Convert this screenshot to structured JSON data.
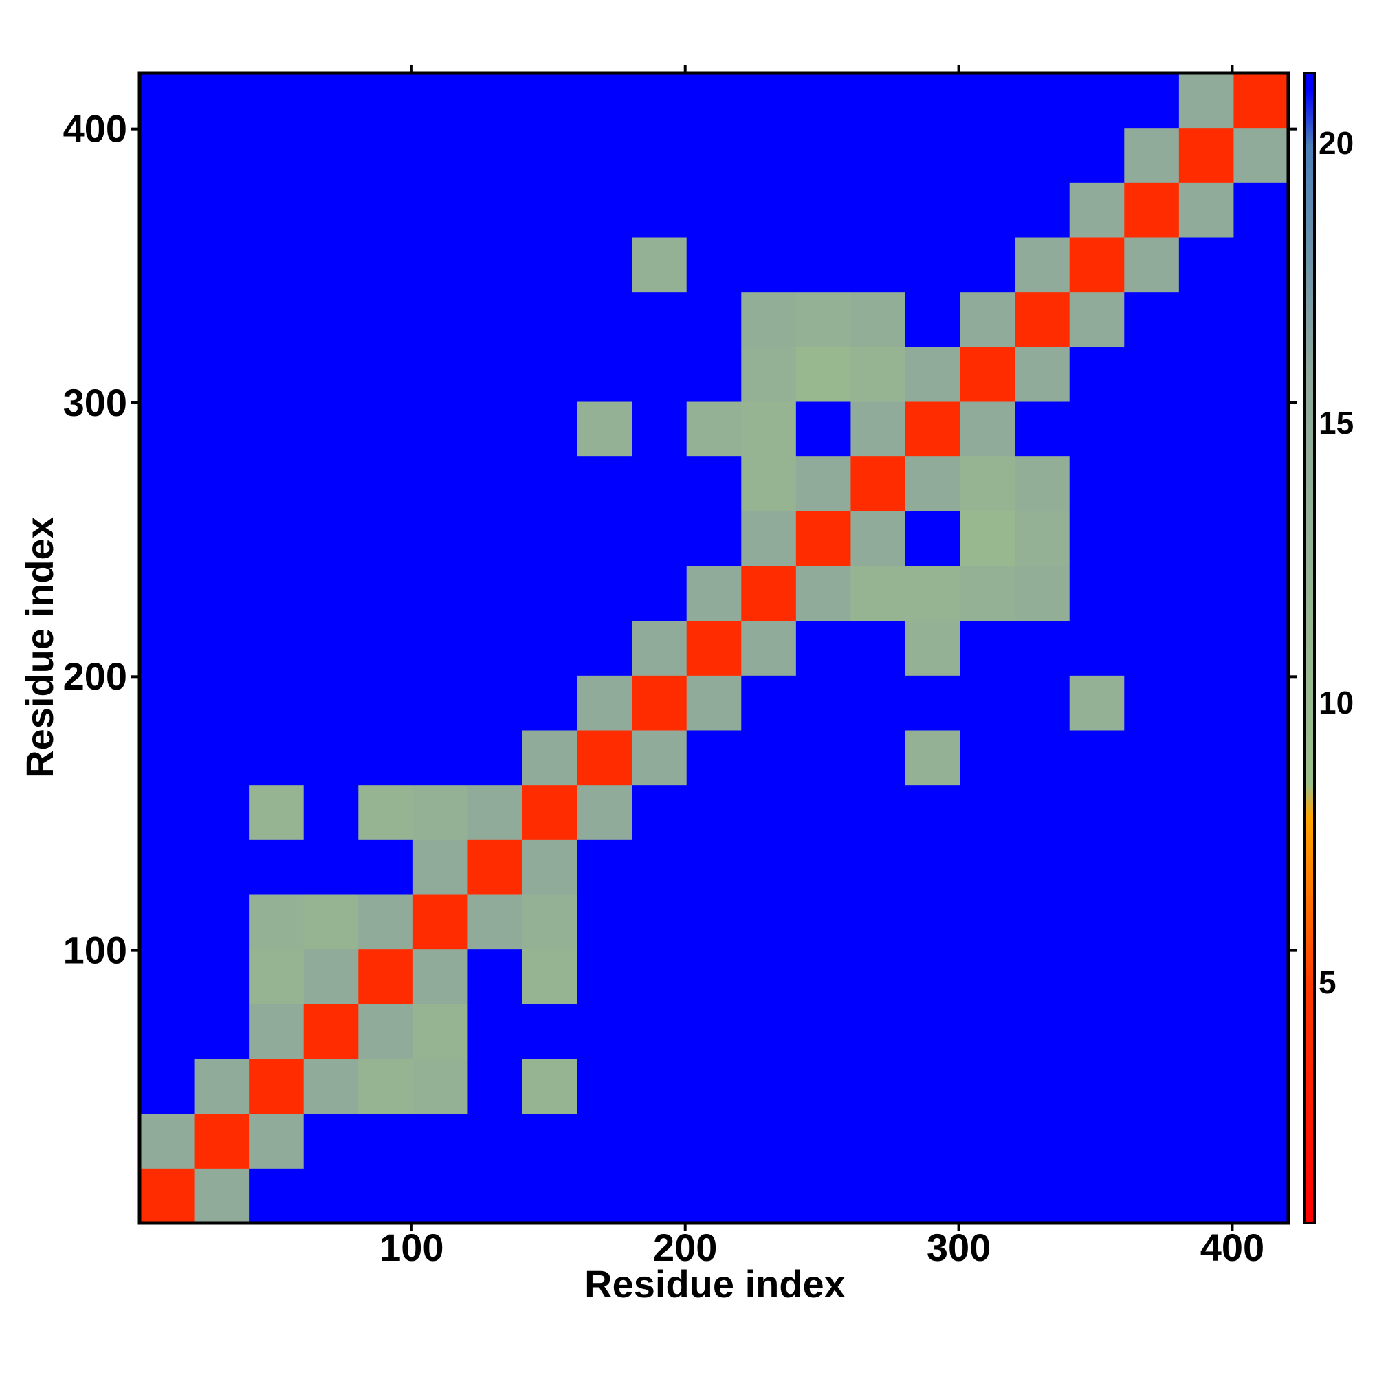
{
  "chart_data": {
    "type": "heatmap",
    "xlabel": "Residue index",
    "ylabel": "Residue index",
    "xbins": [
      0.5,
      20.5,
      40.5,
      60.5,
      80.5,
      100.5,
      120.5,
      140.5,
      160.5,
      180.5,
      200.5,
      220.5,
      240.5,
      260.5,
      280.5,
      300.5,
      320.5,
      340.5,
      360.5,
      380.5,
      400.5,
      420.5
    ],
    "ybins": [
      0.5,
      20.5,
      40.5,
      60.5,
      80.5,
      100.5,
      120.5,
      140.5,
      160.5,
      180.5,
      200.5,
      220.5,
      240.5,
      260.5,
      280.5,
      300.5,
      320.5,
      340.5,
      360.5,
      380.5,
      400.5,
      420.5
    ],
    "xlim": [
      0.5,
      420.5
    ],
    "ylim": [
      0.5,
      420.5
    ],
    "xticks": [
      100,
      200,
      300,
      400
    ],
    "yticks": [
      100,
      200,
      300,
      400
    ],
    "clim": [
      0.75,
      21.3
    ],
    "colorbar_ticks": [
      5,
      10,
      15,
      20
    ],
    "colorscale": [
      [
        0.75,
        "#ff0000"
      ],
      [
        5,
        "#ff3a00"
      ],
      [
        8,
        "#ffa500"
      ],
      [
        8.6,
        "#9cbf8a"
      ],
      [
        16,
        "#8fa89c"
      ],
      [
        20,
        "#4a7fb8"
      ],
      [
        21,
        "#0000ff"
      ]
    ],
    "values": [
      [
        4,
        15,
        21,
        21,
        21,
        21,
        21,
        21,
        21,
        21,
        21,
        21,
        21,
        21,
        21,
        21,
        21,
        21,
        21,
        21,
        21
      ],
      [
        15,
        4,
        15,
        21,
        21,
        21,
        21,
        21,
        21,
        21,
        21,
        21,
        21,
        21,
        21,
        21,
        21,
        21,
        21,
        21,
        21
      ],
      [
        21,
        15,
        4,
        15,
        12,
        13,
        21,
        12,
        21,
        21,
        21,
        21,
        21,
        21,
        21,
        21,
        21,
        21,
        21,
        21,
        21
      ],
      [
        21,
        21,
        15,
        4,
        15,
        12,
        21,
        21,
        21,
        21,
        21,
        21,
        21,
        21,
        21,
        21,
        21,
        21,
        21,
        21,
        21
      ],
      [
        21,
        21,
        12,
        15,
        4,
        15,
        21,
        12,
        21,
        21,
        21,
        21,
        21,
        21,
        21,
        21,
        21,
        21,
        21,
        21,
        21
      ],
      [
        21,
        21,
        13,
        12,
        15,
        4,
        15,
        13,
        21,
        21,
        21,
        21,
        21,
        21,
        21,
        21,
        21,
        21,
        21,
        21,
        21
      ],
      [
        21,
        21,
        21,
        21,
        21,
        15,
        4,
        15,
        21,
        21,
        21,
        21,
        21,
        21,
        21,
        21,
        21,
        21,
        21,
        21,
        21
      ],
      [
        21,
        21,
        12,
        21,
        12,
        13,
        15,
        4,
        15,
        21,
        21,
        21,
        21,
        21,
        21,
        21,
        21,
        21,
        21,
        21,
        21
      ],
      [
        21,
        21,
        21,
        21,
        21,
        21,
        21,
        15,
        4,
        15,
        21,
        21,
        21,
        21,
        13,
        21,
        21,
        21,
        21,
        21,
        21
      ],
      [
        21,
        21,
        21,
        21,
        21,
        21,
        21,
        21,
        15,
        4,
        15,
        21,
        21,
        21,
        21,
        21,
        21,
        13,
        21,
        21,
        21
      ],
      [
        21,
        21,
        21,
        21,
        21,
        21,
        21,
        21,
        21,
        15,
        4,
        15,
        21,
        21,
        13,
        21,
        21,
        21,
        21,
        21,
        21
      ],
      [
        21,
        21,
        21,
        21,
        21,
        21,
        21,
        21,
        21,
        21,
        15,
        4,
        15,
        12,
        12,
        13,
        14,
        21,
        21,
        21,
        21
      ],
      [
        21,
        21,
        21,
        21,
        21,
        21,
        21,
        21,
        21,
        21,
        21,
        15,
        4,
        15,
        21,
        11,
        13,
        21,
        21,
        21,
        21
      ],
      [
        21,
        21,
        21,
        21,
        21,
        21,
        21,
        21,
        21,
        21,
        21,
        12,
        15,
        4,
        15,
        12,
        14,
        21,
        21,
        21,
        21
      ],
      [
        21,
        21,
        21,
        21,
        21,
        21,
        21,
        21,
        13,
        21,
        13,
        12,
        21,
        15,
        4,
        15,
        21,
        21,
        21,
        21,
        21
      ],
      [
        21,
        21,
        21,
        21,
        21,
        21,
        21,
        21,
        21,
        21,
        21,
        13,
        11,
        12,
        15,
        4,
        15,
        21,
        21,
        21,
        21
      ],
      [
        21,
        21,
        21,
        21,
        21,
        21,
        21,
        21,
        21,
        21,
        21,
        14,
        13,
        14,
        21,
        15,
        4,
        15,
        21,
        21,
        21
      ],
      [
        21,
        21,
        21,
        21,
        21,
        21,
        21,
        21,
        21,
        13,
        21,
        21,
        21,
        21,
        21,
        21,
        15,
        4,
        15,
        21,
        21
      ],
      [
        21,
        21,
        21,
        21,
        21,
        21,
        21,
        21,
        21,
        21,
        21,
        21,
        21,
        21,
        21,
        21,
        21,
        15,
        4,
        15,
        21
      ],
      [
        21,
        21,
        21,
        21,
        21,
        21,
        21,
        21,
        21,
        21,
        21,
        21,
        21,
        21,
        21,
        21,
        21,
        21,
        15,
        4,
        15
      ],
      [
        21,
        21,
        21,
        21,
        21,
        21,
        21,
        21,
        21,
        21,
        21,
        21,
        21,
        21,
        21,
        21,
        21,
        21,
        21,
        15,
        4
      ]
    ]
  }
}
